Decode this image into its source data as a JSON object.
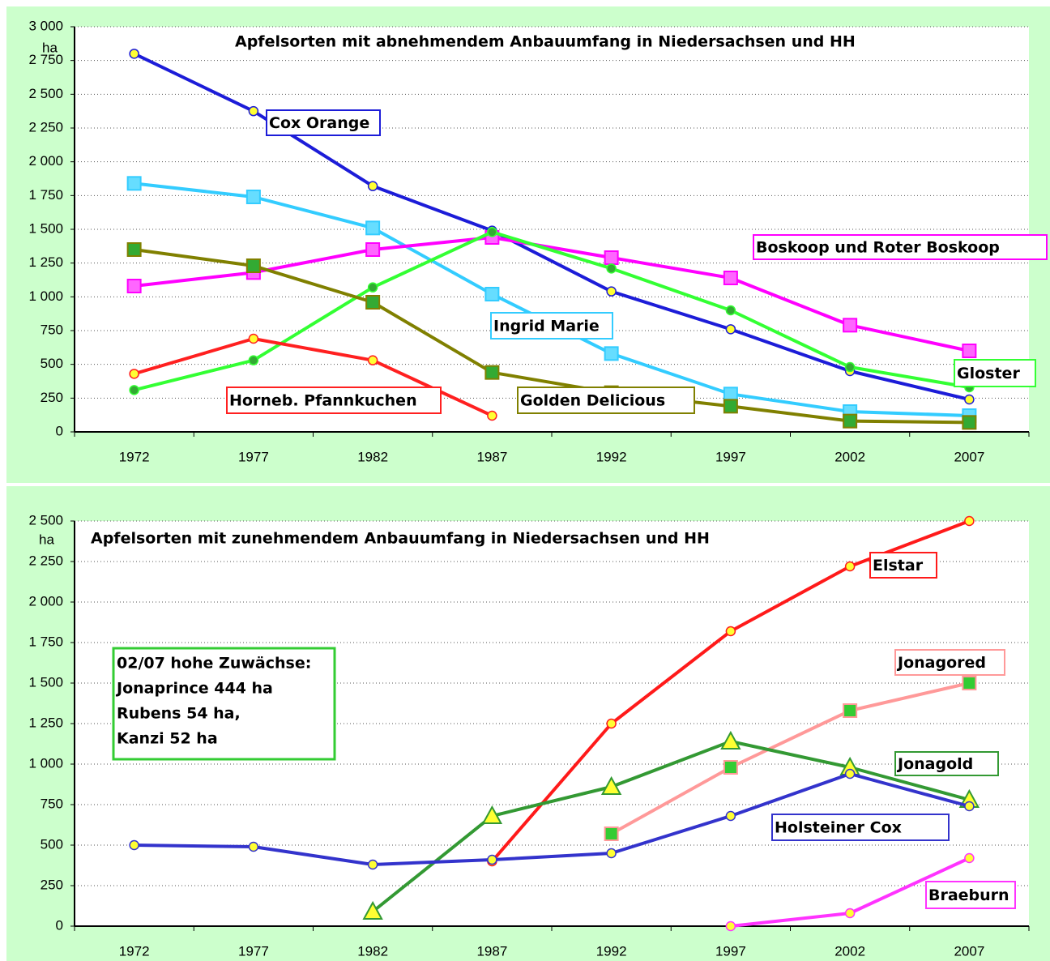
{
  "chart_data": [
    {
      "type": "line",
      "title": "Apfelsorten mit abnehmendem Anbauumfang in Niedersachsen und HH",
      "y_unit": "ha",
      "categories": [
        "1972",
        "1977",
        "1982",
        "1987",
        "1992",
        "1997",
        "2002",
        "2007"
      ],
      "ylim": [
        0,
        3000
      ],
      "yticks": [
        0,
        250,
        500,
        750,
        {
          "value": 1000,
          "label": "1 000"
        },
        {
          "value": 1250,
          "label": "1 250"
        },
        {
          "value": 1500,
          "label": "1 500"
        },
        {
          "value": 1750,
          "label": "1 750"
        },
        {
          "value": 2000,
          "label": "2 000"
        },
        {
          "value": 2250,
          "label": "2 250"
        },
        {
          "value": 2500,
          "label": "2 500"
        },
        {
          "value": 2750,
          "label": "2 750"
        },
        {
          "value": 3000,
          "label": "3 000"
        }
      ],
      "grid": true,
      "series": [
        {
          "name": "Cox Orange",
          "color": "#1c1cd8",
          "marker": "circle",
          "marker_color": "#ffff33",
          "values": [
            2800,
            2375,
            1820,
            1490,
            1040,
            760,
            450,
            240
          ]
        },
        {
          "name": "Ingrid Marie",
          "color": "#33ccff",
          "marker": "square",
          "marker_color": "#66ddff",
          "values": [
            1840,
            1740,
            1510,
            1020,
            580,
            280,
            150,
            120
          ]
        },
        {
          "name": "Boskoop und Roter Boskoop",
          "color": "#ff00ff",
          "marker": "square",
          "marker_color": "#ff66ff",
          "values": [
            1080,
            1180,
            1350,
            1440,
            1290,
            1140,
            790,
            600
          ]
        },
        {
          "name": "Gloster",
          "color": "#33ff33",
          "marker": "circle",
          "marker_color": "#33aa33",
          "values": [
            310,
            530,
            1070,
            1480,
            1210,
            900,
            480,
            330
          ]
        },
        {
          "name": "Golden Delicious",
          "color": "#808000",
          "marker": "square",
          "marker_color": "#33aa33",
          "values": [
            1350,
            1230,
            960,
            440,
            290,
            190,
            80,
            70
          ]
        },
        {
          "name": "Horneb. Pfannkuchen",
          "color": "#ff2020",
          "marker": "circle",
          "marker_color": "#ffff33",
          "values": [
            430,
            690,
            530,
            120,
            null,
            null,
            null,
            null
          ]
        }
      ]
    },
    {
      "type": "line",
      "title": "Apfelsorten mit zunehmendem Anbauumfang in Niedersachsen und HH",
      "y_unit": "ha",
      "categories": [
        "1972",
        "1977",
        "1982",
        "1987",
        "1992",
        "1997",
        "2002",
        "2007"
      ],
      "ylim": [
        0,
        2500
      ],
      "yticks": [
        0,
        250,
        500,
        750,
        {
          "value": 1000,
          "label": "1 000"
        },
        {
          "value": 1250,
          "label": "1 250"
        },
        {
          "value": 1500,
          "label": "1 500"
        },
        {
          "value": 1750,
          "label": "1 750"
        },
        {
          "value": 2000,
          "label": "2 000"
        },
        {
          "value": 2250,
          "label": "2 250"
        },
        {
          "value": 2500,
          "label": "2 500"
        }
      ],
      "grid": true,
      "annotation": [
        "02/07 hohe Zuwächse:",
        "Jonaprince 444 ha",
        "Rubens 54 ha,",
        "Kanzi 52 ha"
      ],
      "series": [
        {
          "name": "Elstar",
          "color": "#ff1a1a",
          "marker": "circle",
          "marker_color": "#ffff33",
          "values": [
            null,
            null,
            null,
            400,
            1250,
            1820,
            2220,
            2500
          ]
        },
        {
          "name": "Jonagored",
          "color": "#ff9999",
          "marker": "square",
          "marker_color": "#33cc33",
          "values": [
            null,
            null,
            null,
            null,
            570,
            980,
            1330,
            1500
          ]
        },
        {
          "name": "Jonagold",
          "color": "#339933",
          "marker": "triangle",
          "marker_color": "#ffff33",
          "values": [
            null,
            null,
            90,
            680,
            860,
            1140,
            980,
            780
          ]
        },
        {
          "name": "Holsteiner Cox",
          "color": "#3333cc",
          "marker": "circle",
          "marker_color": "#ffff33",
          "values": [
            500,
            490,
            380,
            410,
            450,
            680,
            940,
            740
          ]
        },
        {
          "name": "Braeburn",
          "color": "#ff33ff",
          "marker": "circle",
          "marker_color": "#ffff33",
          "values": [
            null,
            null,
            null,
            null,
            null,
            0,
            80,
            420
          ]
        }
      ]
    }
  ]
}
